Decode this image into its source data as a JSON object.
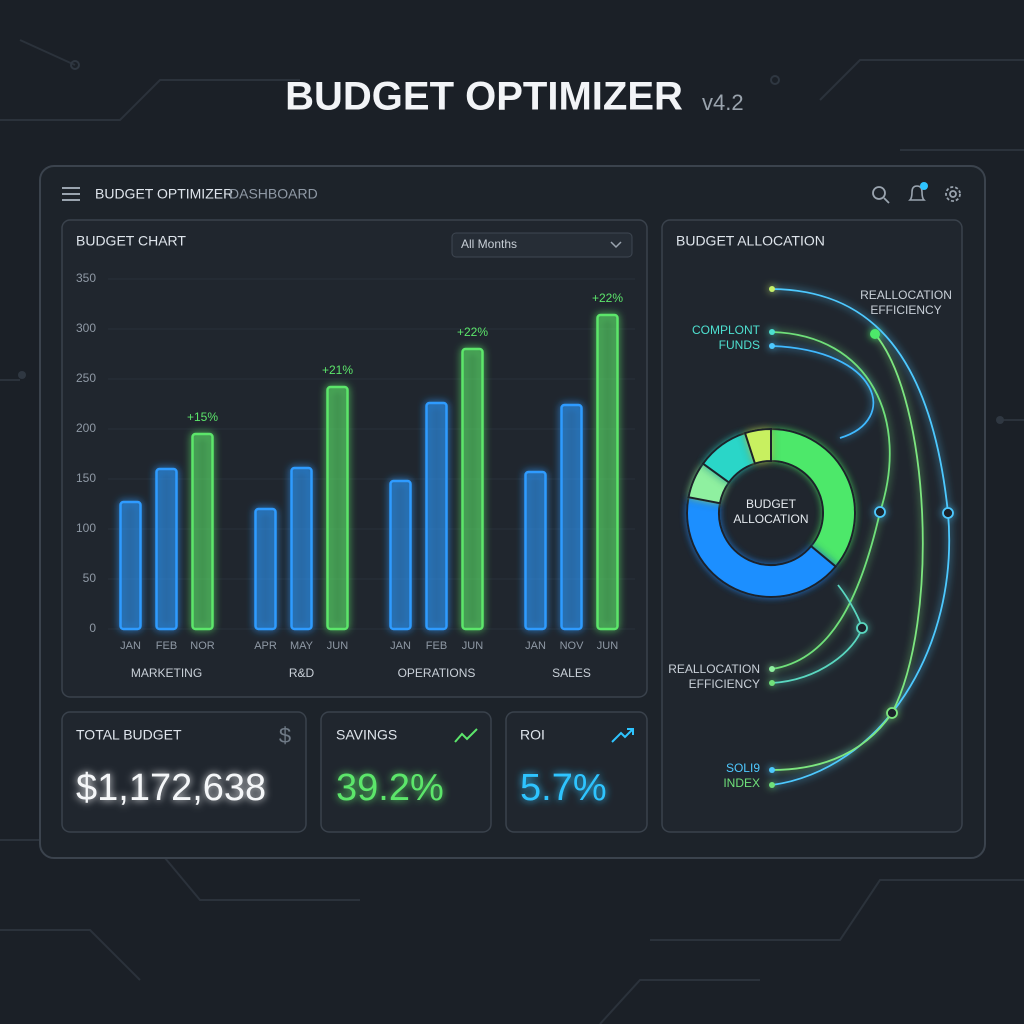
{
  "header": {
    "title": "BUDGET OPTIMIZER",
    "version": "v4.2"
  },
  "app_bar": {
    "title": "BUDGET OPTIMIZER",
    "subtitle": "DASHBOARD"
  },
  "chart_data": [
    {
      "type": "grouped-bar",
      "title": "BUDGET CHART",
      "filter": "All Months",
      "ylim": [
        0,
        350
      ],
      "yticks": [
        0,
        50,
        100,
        150,
        200,
        250,
        300,
        350
      ],
      "grid": true,
      "colors": [
        "#2e9bff",
        "#2e9bff",
        "#5ce66b"
      ],
      "groups": [
        {
          "name": "MARKETING",
          "categories": [
            "JAN",
            "FEB",
            "NOR"
          ],
          "values": [
            127,
            160,
            195
          ],
          "annotation": "+15%"
        },
        {
          "name": "R&D",
          "categories": [
            "APR",
            "MAY",
            "JUN"
          ],
          "values": [
            120,
            161,
            242
          ],
          "annotation": "+21%"
        },
        {
          "name": "OPERATIONS",
          "categories": [
            "JAN",
            "FEB",
            "JUN"
          ],
          "values": [
            148,
            226,
            280
          ],
          "annotation": "+22%"
        },
        {
          "name": "SALES",
          "categories": [
            "JAN",
            "NOV",
            "JUN"
          ],
          "values": [
            157,
            224,
            314
          ],
          "annotation": "+22%"
        }
      ]
    },
    {
      "type": "donut",
      "title": "BUDGET ALLOCATION",
      "center_label": [
        "BUDGET",
        "ALLOCATION"
      ],
      "values": [
        36,
        42,
        7,
        10,
        5
      ],
      "colors": [
        "#4ee86a",
        "#1f8fff",
        "#8ff0a0",
        "#2ad6c8",
        "#c8f060"
      ],
      "annotations": [
        [
          "REALLOCATION",
          "EFFICIENCY"
        ],
        [
          "COMPLONT",
          "FUNDS"
        ],
        [
          "REALLOCATION",
          "EFFICIENCY"
        ],
        [
          "SOLI9",
          "INDEX"
        ]
      ]
    }
  ],
  "kpis": [
    {
      "label": "TOTAL BUDGET",
      "icon": "$",
      "value": "$1,172,638"
    },
    {
      "label": "SAVINGS",
      "value": "39.2%"
    },
    {
      "label": "ROI",
      "value": "5.7%"
    }
  ]
}
